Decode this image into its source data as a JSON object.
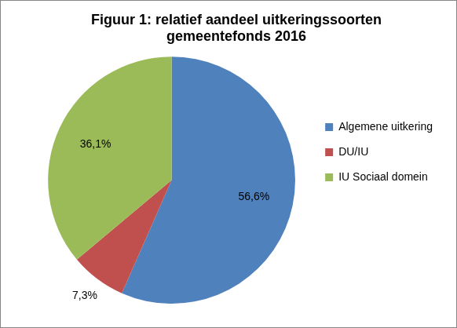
{
  "chart_data": {
    "type": "pie",
    "title": [
      "Figuur 1: relatief aandeel uitkeringssoorten",
      "gemeentefonds 2016"
    ],
    "categories": [
      "Algemene uitkering",
      "DU/IU",
      "IU Sociaal domein"
    ],
    "values": [
      56.6,
      7.3,
      36.1
    ],
    "value_labels": [
      "56,6%",
      "7,3%",
      "36,1%"
    ],
    "colors": [
      "#4f81bd",
      "#c0504d",
      "#9bbb59"
    ],
    "legend": "right",
    "data_labels": true
  }
}
